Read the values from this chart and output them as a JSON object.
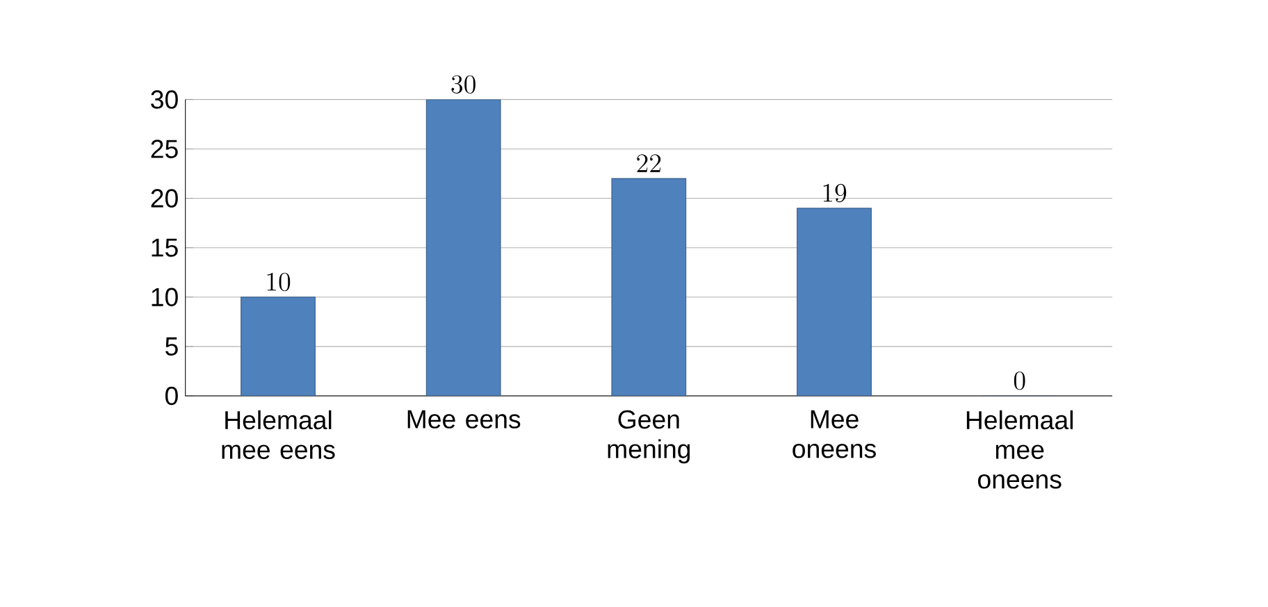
{
  "chart_data": {
    "type": "bar",
    "categories": [
      "Helemaal mee eens",
      "Mee eens",
      "Geen mening",
      "Mee oneens",
      "Helemaal mee oneens"
    ],
    "values": [
      10,
      30,
      22,
      19,
      0
    ],
    "color": "#4f81bd",
    "ylim": [
      0,
      30
    ],
    "yticks": [
      0,
      5,
      10,
      15,
      20,
      25,
      30
    ],
    "grid": "y",
    "data_labels": true
  }
}
